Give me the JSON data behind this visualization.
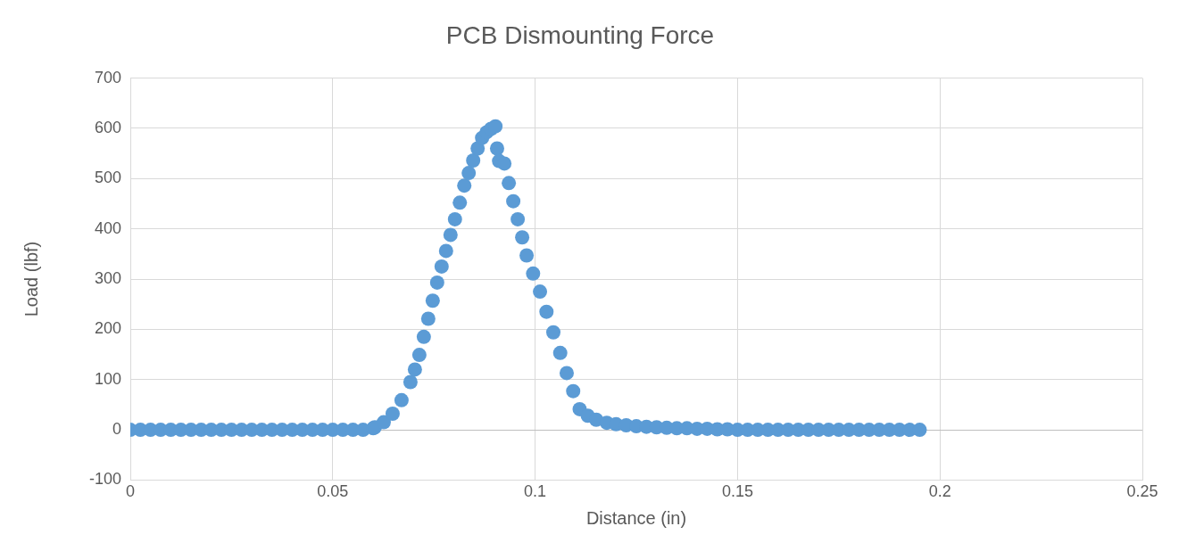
{
  "chart_data": {
    "type": "scatter",
    "title": "PCB Dismounting Force",
    "xlabel": "Distance (in)",
    "ylabel": "Load (lbf)",
    "xlim": [
      0,
      0.25
    ],
    "xticks": [
      0,
      0.05,
      0.1,
      0.15,
      0.2,
      0.25
    ],
    "ylim": [
      -100,
      700
    ],
    "yticks": [
      -100,
      0,
      100,
      200,
      300,
      400,
      500,
      600,
      700
    ],
    "grid": true,
    "marker": "circle",
    "legend": false,
    "series": [
      {
        "color": "#5b9bd5",
        "x": [
          0,
          0.0025,
          0.005,
          0.0075,
          0.01,
          0.0125,
          0.015,
          0.0175,
          0.02,
          0.0225,
          0.025,
          0.0275,
          0.03,
          0.0325,
          0.035,
          0.0375,
          0.04,
          0.0425,
          0.045,
          0.0475,
          0.05,
          0.0525,
          0.055,
          0.0575,
          0.06,
          0.0604,
          0.0626,
          0.0648,
          0.067,
          0.0692,
          0.0703,
          0.0714,
          0.0725,
          0.0736,
          0.0747,
          0.0758,
          0.0769,
          0.078,
          0.0791,
          0.0802,
          0.0814,
          0.0825,
          0.0836,
          0.0847,
          0.0858,
          0.0869,
          0.088,
          0.0891,
          0.0902,
          0.0906,
          0.0911,
          0.0924,
          0.0935,
          0.0946,
          0.0957,
          0.0968,
          0.0979,
          0.0995,
          0.1012,
          0.1028,
          0.1045,
          0.1062,
          0.1078,
          0.1094,
          0.111,
          0.113,
          0.1151,
          0.1177,
          0.12,
          0.1225,
          0.125,
          0.1275,
          0.13,
          0.1325,
          0.135,
          0.1375,
          0.14,
          0.1425,
          0.145,
          0.1475,
          0.15,
          0.1525,
          0.155,
          0.1575,
          0.16,
          0.1625,
          0.165,
          0.1675,
          0.17,
          0.1725,
          0.175,
          0.1775,
          0.18,
          0.1825,
          0.185,
          0.1875,
          0.19,
          0.1925,
          0.195
        ],
        "values": [
          0,
          0,
          0,
          0,
          0,
          0,
          0,
          0,
          0,
          0,
          0,
          0,
          0,
          0,
          0,
          0,
          0,
          0,
          0,
          0,
          0,
          0,
          0,
          0,
          3,
          5,
          15,
          32,
          59,
          95,
          120,
          149,
          185,
          221,
          257,
          293,
          325,
          356,
          388,
          419,
          452,
          486,
          511,
          536,
          560,
          581,
          592,
          599,
          604,
          560,
          535,
          530,
          491,
          455,
          419,
          383,
          347,
          311,
          275,
          235,
          194,
          153,
          113,
          77,
          41,
          28,
          20,
          14,
          11,
          9,
          7,
          6,
          5,
          4,
          3,
          3,
          2,
          2,
          1,
          1,
          0,
          0,
          0,
          0,
          0,
          0,
          0,
          0,
          0,
          0,
          0,
          0,
          0,
          0,
          0,
          0,
          0,
          0,
          0
        ]
      }
    ]
  }
}
